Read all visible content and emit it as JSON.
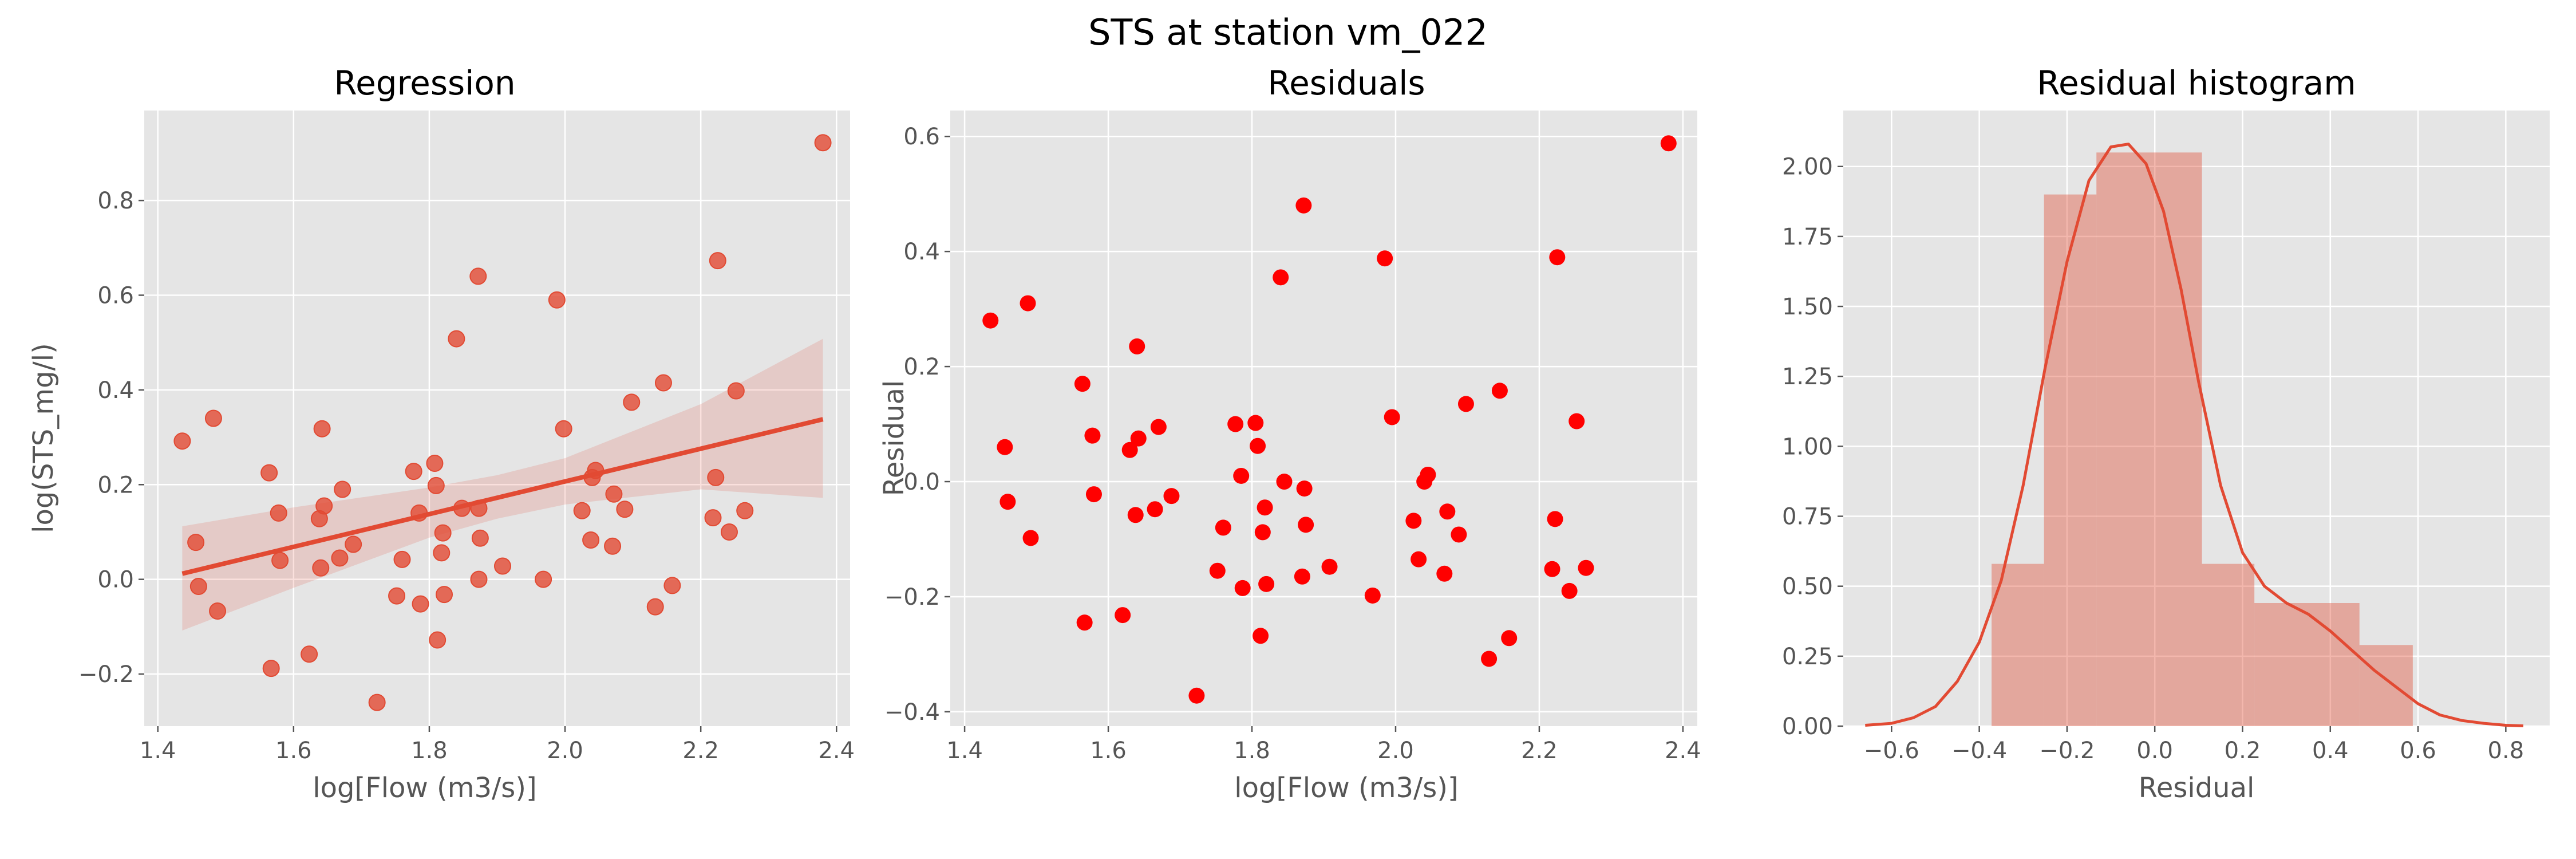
{
  "figure": {
    "title": "STS at station vm_022"
  },
  "colors": {
    "panel_bg": "#E5E5E5",
    "grid": "#FFFFFF",
    "accent": "#E24A33",
    "residual_points": "#FF0000",
    "hist_fill": "#E24A33"
  },
  "chart_data": [
    {
      "type": "scatter",
      "title": "Regression",
      "xlabel": "log[Flow (m3/s)]",
      "ylabel": "log(STS_mg/l)",
      "xlim": [
        1.38,
        2.42
      ],
      "ylim": [
        -0.31,
        0.99
      ],
      "xticks": [
        1.4,
        1.6,
        1.8,
        2.0,
        2.2,
        2.4
      ],
      "xtick_labels": [
        "1.4",
        "1.6",
        "1.8",
        "2.0",
        "2.2",
        "2.4"
      ],
      "yticks": [
        -0.2,
        0.0,
        0.2,
        0.4,
        0.6,
        0.8
      ],
      "ytick_labels": [
        "−0.2",
        "0.0",
        "0.2",
        "0.4",
        "0.6",
        "0.8"
      ],
      "grid": true,
      "points": [
        [
          1.436,
          0.292
        ],
        [
          1.456,
          0.078
        ],
        [
          1.46,
          -0.015
        ],
        [
          1.482,
          0.34
        ],
        [
          1.488,
          -0.067
        ],
        [
          1.564,
          0.225
        ],
        [
          1.567,
          -0.188
        ],
        [
          1.578,
          0.14
        ],
        [
          1.58,
          0.04
        ],
        [
          1.623,
          -0.158
        ],
        [
          1.638,
          0.128
        ],
        [
          1.64,
          0.024
        ],
        [
          1.642,
          0.318
        ],
        [
          1.645,
          0.155
        ],
        [
          1.668,
          0.045
        ],
        [
          1.672,
          0.19
        ],
        [
          1.688,
          0.074
        ],
        [
          1.723,
          -0.26
        ],
        [
          1.752,
          -0.035
        ],
        [
          1.76,
          0.042
        ],
        [
          1.777,
          0.228
        ],
        [
          1.785,
          0.14
        ],
        [
          1.787,
          -0.052
        ],
        [
          1.808,
          0.245
        ],
        [
          1.81,
          0.198
        ],
        [
          1.812,
          -0.128
        ],
        [
          1.818,
          0.056
        ],
        [
          1.82,
          0.098
        ],
        [
          1.822,
          -0.032
        ],
        [
          1.84,
          0.508
        ],
        [
          1.848,
          0.15
        ],
        [
          1.872,
          0.64
        ],
        [
          1.873,
          0.15
        ],
        [
          1.873,
          0.0
        ],
        [
          1.875,
          0.087
        ],
        [
          1.908,
          0.028
        ],
        [
          1.968,
          0.0
        ],
        [
          1.988,
          0.59
        ],
        [
          1.998,
          0.318
        ],
        [
          2.025,
          0.145
        ],
        [
          2.038,
          0.083
        ],
        [
          2.04,
          0.215
        ],
        [
          2.045,
          0.23
        ],
        [
          2.07,
          0.07
        ],
        [
          2.072,
          0.18
        ],
        [
          2.088,
          0.148
        ],
        [
          2.098,
          0.374
        ],
        [
          2.133,
          -0.058
        ],
        [
          2.145,
          0.415
        ],
        [
          2.158,
          -0.013
        ],
        [
          2.218,
          0.13
        ],
        [
          2.222,
          0.215
        ],
        [
          2.225,
          0.673
        ],
        [
          2.242,
          0.1
        ],
        [
          2.252,
          0.398
        ],
        [
          2.265,
          0.145
        ],
        [
          2.38,
          0.922
        ]
      ],
      "fit_line": {
        "x": [
          1.436,
          2.38
        ],
        "y": [
          0.012,
          0.338
        ]
      },
      "confidence_band": {
        "x": [
          1.436,
          1.6,
          1.8,
          1.9,
          2.0,
          2.2,
          2.38
        ],
        "upper": [
          0.112,
          0.152,
          0.194,
          0.22,
          0.256,
          0.37,
          0.508
        ],
        "lower": [
          -0.108,
          -0.018,
          0.088,
          0.128,
          0.158,
          0.19,
          0.172
        ]
      }
    },
    {
      "type": "scatter",
      "title": "Residuals",
      "xlabel": "log[Flow (m3/s)]",
      "ylabel": "Residual",
      "xlim": [
        1.38,
        2.42
      ],
      "ylim": [
        -0.425,
        0.645
      ],
      "xticks": [
        1.4,
        1.6,
        1.8,
        2.0,
        2.2,
        2.4
      ],
      "xtick_labels": [
        "1.4",
        "1.6",
        "1.8",
        "2.0",
        "2.2",
        "2.4"
      ],
      "yticks": [
        -0.4,
        -0.2,
        0.0,
        0.2,
        0.4,
        0.6
      ],
      "ytick_labels": [
        "−0.4",
        "−0.2",
        "0.0",
        "0.2",
        "0.4",
        "0.6"
      ],
      "grid": true,
      "points": [
        [
          1.436,
          0.28
        ],
        [
          1.456,
          0.06
        ],
        [
          1.46,
          -0.035
        ],
        [
          1.488,
          0.31
        ],
        [
          1.492,
          -0.098
        ],
        [
          1.564,
          0.17
        ],
        [
          1.567,
          -0.245
        ],
        [
          1.578,
          0.08
        ],
        [
          1.58,
          -0.022
        ],
        [
          1.62,
          -0.232
        ],
        [
          1.63,
          0.055
        ],
        [
          1.638,
          -0.058
        ],
        [
          1.64,
          0.235
        ],
        [
          1.642,
          0.075
        ],
        [
          1.665,
          -0.048
        ],
        [
          1.67,
          0.095
        ],
        [
          1.688,
          -0.025
        ],
        [
          1.723,
          -0.372
        ],
        [
          1.752,
          -0.155
        ],
        [
          1.76,
          -0.08
        ],
        [
          1.777,
          0.1
        ],
        [
          1.785,
          0.01
        ],
        [
          1.787,
          -0.185
        ],
        [
          1.805,
          0.102
        ],
        [
          1.808,
          0.062
        ],
        [
          1.812,
          -0.268
        ],
        [
          1.815,
          -0.088
        ],
        [
          1.818,
          -0.045
        ],
        [
          1.82,
          -0.178
        ],
        [
          1.84,
          0.355
        ],
        [
          1.845,
          0.0
        ],
        [
          1.87,
          -0.165
        ],
        [
          1.872,
          0.48
        ],
        [
          1.873,
          -0.012
        ],
        [
          1.875,
          -0.075
        ],
        [
          1.908,
          -0.148
        ],
        [
          1.968,
          -0.198
        ],
        [
          1.985,
          0.388
        ],
        [
          1.995,
          0.112
        ],
        [
          2.025,
          -0.068
        ],
        [
          2.032,
          -0.135
        ],
        [
          2.04,
          0.0
        ],
        [
          2.045,
          0.012
        ],
        [
          2.068,
          -0.16
        ],
        [
          2.072,
          -0.052
        ],
        [
          2.088,
          -0.092
        ],
        [
          2.098,
          0.135
        ],
        [
          2.13,
          -0.308
        ],
        [
          2.145,
          0.158
        ],
        [
          2.158,
          -0.272
        ],
        [
          2.218,
          -0.152
        ],
        [
          2.222,
          -0.065
        ],
        [
          2.225,
          0.39
        ],
        [
          2.242,
          -0.19
        ],
        [
          2.252,
          0.105
        ],
        [
          2.265,
          -0.15
        ],
        [
          2.38,
          0.588
        ]
      ]
    },
    {
      "type": "histogram",
      "title": "Residual histogram",
      "xlabel": "Residual",
      "ylabel": "",
      "xlim": [
        -0.71,
        0.9
      ],
      "ylim": [
        0.0,
        2.2
      ],
      "xticks": [
        -0.6,
        -0.4,
        -0.2,
        0.0,
        0.2,
        0.4,
        0.6,
        0.8
      ],
      "xtick_labels": [
        "−0.6",
        "−0.4",
        "−0.2",
        "0.0",
        "0.2",
        "0.4",
        "0.6",
        "0.8"
      ],
      "yticks": [
        0.0,
        0.25,
        0.5,
        0.75,
        1.0,
        1.25,
        1.5,
        1.75,
        2.0
      ],
      "ytick_labels": [
        "0.00",
        "0.25",
        "0.50",
        "0.75",
        "1.00",
        "1.25",
        "1.50",
        "1.75",
        "2.00"
      ],
      "grid": true,
      "bins": [
        {
          "x0": -0.372,
          "x1": -0.2525,
          "height": 0.58
        },
        {
          "x0": -0.2525,
          "x1": -0.133,
          "height": 1.9
        },
        {
          "x0": -0.133,
          "x1": 0.1075,
          "height": 2.05
        },
        {
          "x0": 0.1075,
          "x1": 0.227,
          "height": 0.58
        },
        {
          "x0": 0.227,
          "x1": 0.4665,
          "height": 0.44
        },
        {
          "x0": 0.4665,
          "x1": 0.588,
          "height": 0.29
        }
      ],
      "kde": {
        "x": [
          -0.66,
          -0.6,
          -0.55,
          -0.5,
          -0.45,
          -0.4,
          -0.35,
          -0.3,
          -0.25,
          -0.2,
          -0.15,
          -0.1,
          -0.06,
          -0.02,
          0.02,
          0.06,
          0.1,
          0.15,
          0.2,
          0.25,
          0.3,
          0.35,
          0.4,
          0.45,
          0.5,
          0.55,
          0.6,
          0.65,
          0.7,
          0.75,
          0.8,
          0.84
        ],
        "y": [
          0.003,
          0.01,
          0.03,
          0.07,
          0.16,
          0.3,
          0.52,
          0.86,
          1.28,
          1.66,
          1.95,
          2.07,
          2.08,
          2.01,
          1.84,
          1.56,
          1.23,
          0.86,
          0.62,
          0.5,
          0.44,
          0.4,
          0.34,
          0.27,
          0.2,
          0.14,
          0.08,
          0.04,
          0.02,
          0.01,
          0.003,
          0.001
        ]
      }
    }
  ]
}
